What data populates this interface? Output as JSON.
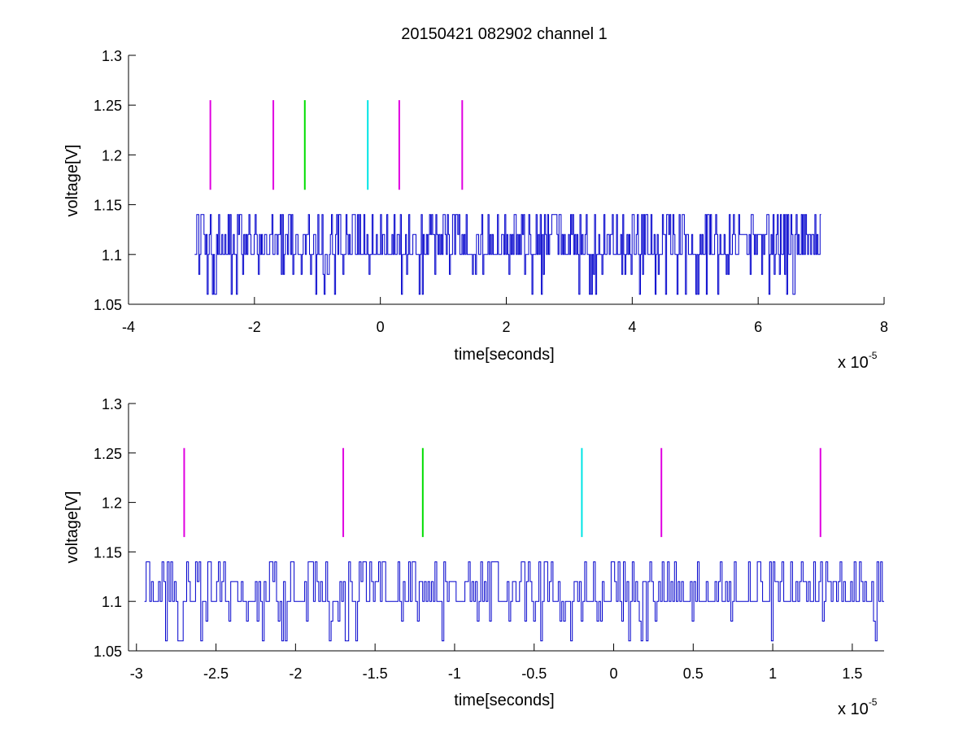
{
  "figure": {
    "title": "20150421 082902 channel 1"
  },
  "chart_data": [
    {
      "type": "line",
      "title": "20150421 082902 channel 1",
      "xlabel": "time[seconds]",
      "ylabel": "voltage[V]",
      "x_multiplier_label": "x 10",
      "x_multiplier_exponent": "-5",
      "xlim": [
        -4,
        8
      ],
      "ylim": [
        1.05,
        1.3
      ],
      "x_ticks": [
        -4,
        -2,
        0,
        2,
        4,
        6,
        8
      ],
      "x_tick_labels": [
        "-4",
        "-2",
        "0",
        "2",
        "4",
        "6",
        "8"
      ],
      "y_ticks": [
        1.05,
        1.1,
        1.15,
        1.2,
        1.25,
        1.3
      ],
      "y_tick_labels": [
        "1.05",
        "1.1",
        "1.15",
        "1.2",
        "1.25",
        "1.3"
      ],
      "grid": false,
      "signal": {
        "color": "#0000cc",
        "x_start": -2.95,
        "x_end": 7.0,
        "baseline": 1.1,
        "levels": [
          1.06,
          1.08,
          1.1,
          1.12,
          1.14
        ],
        "samples": 600
      },
      "markers": [
        {
          "x": -2.7,
          "y_range": [
            1.165,
            1.255
          ],
          "color": "#e000e0"
        },
        {
          "x": -1.7,
          "y_range": [
            1.165,
            1.255
          ],
          "color": "#e000e0"
        },
        {
          "x": -1.2,
          "y_range": [
            1.165,
            1.255
          ],
          "color": "#00dd00"
        },
        {
          "x": -0.2,
          "y_range": [
            1.165,
            1.255
          ],
          "color": "#00e5e5"
        },
        {
          "x": 0.3,
          "y_range": [
            1.165,
            1.255
          ],
          "color": "#e000e0"
        },
        {
          "x": 1.3,
          "y_range": [
            1.165,
            1.255
          ],
          "color": "#e000e0"
        }
      ]
    },
    {
      "type": "line",
      "title": "",
      "xlabel": "time[seconds]",
      "ylabel": "voltage[V]",
      "x_multiplier_label": "x 10",
      "x_multiplier_exponent": "-5",
      "xlim": [
        -3.05,
        1.7
      ],
      "ylim": [
        1.05,
        1.3
      ],
      "x_ticks": [
        -3,
        -2.5,
        -2,
        -1.5,
        -1,
        -0.5,
        0,
        0.5,
        1,
        1.5
      ],
      "x_tick_labels": [
        "-3",
        "-2.5",
        "-2",
        "-1.5",
        "-1",
        "-0.5",
        "0",
        "0.5",
        "1",
        "1.5"
      ],
      "y_ticks": [
        1.05,
        1.1,
        1.15,
        1.2,
        1.25,
        1.3
      ],
      "y_tick_labels": [
        "1.05",
        "1.1",
        "1.15",
        "1.2",
        "1.25",
        "1.3"
      ],
      "grid": false,
      "signal": {
        "color": "#0000cc",
        "x_start": -2.95,
        "x_end": 1.7,
        "baseline": 1.1,
        "levels": [
          1.06,
          1.08,
          1.1,
          1.12,
          1.14
        ],
        "samples": 420
      },
      "markers": [
        {
          "x": -2.7,
          "y_range": [
            1.165,
            1.255
          ],
          "color": "#e000e0"
        },
        {
          "x": -1.7,
          "y_range": [
            1.165,
            1.255
          ],
          "color": "#e000e0"
        },
        {
          "x": -1.2,
          "y_range": [
            1.165,
            1.255
          ],
          "color": "#00dd00"
        },
        {
          "x": -0.2,
          "y_range": [
            1.165,
            1.255
          ],
          "color": "#00e5e5"
        },
        {
          "x": 0.3,
          "y_range": [
            1.165,
            1.255
          ],
          "color": "#e000e0"
        },
        {
          "x": 1.3,
          "y_range": [
            1.165,
            1.255
          ],
          "color": "#e000e0"
        }
      ]
    }
  ]
}
